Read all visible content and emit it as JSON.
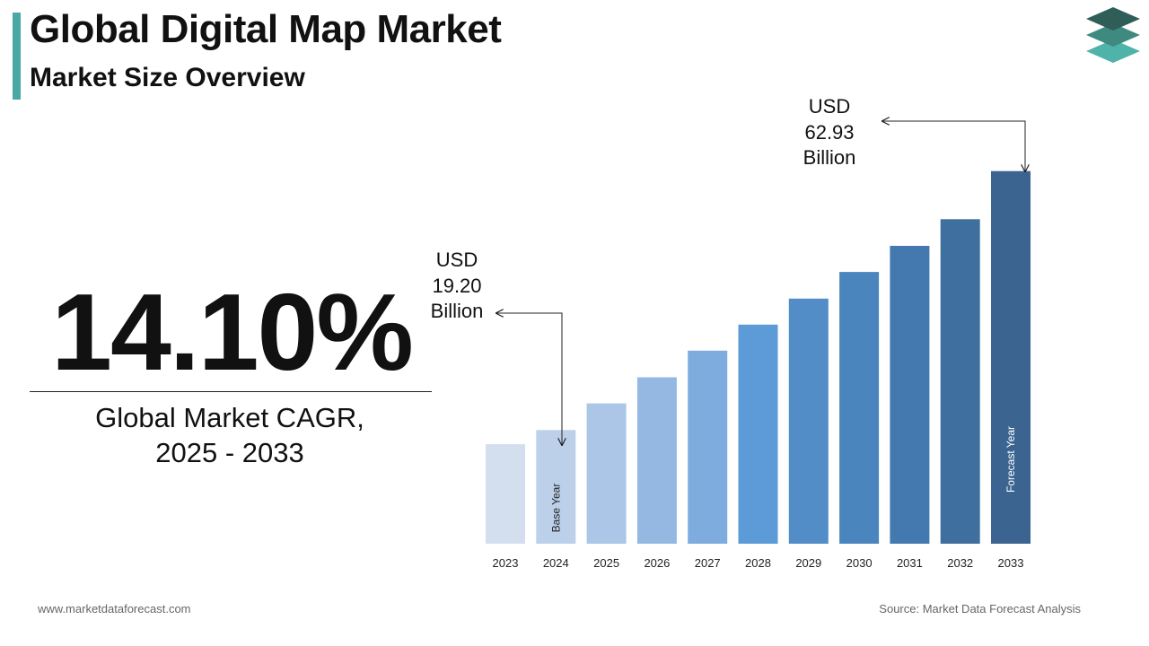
{
  "header": {
    "title": "Global Digital Map Market",
    "subtitle": "Market Size Overview"
  },
  "logo": {
    "icon": "stacked-layers-logo-icon",
    "colors": [
      "#2f5d57",
      "#3f8a80",
      "#4fb3aa"
    ]
  },
  "cagr": {
    "value": "14.10%",
    "label_line1": "Global Market CAGR,",
    "label_line2": "2025 - 2033"
  },
  "annotations": {
    "start": {
      "line1": "USD",
      "line2": "19.20",
      "line3": "Billion"
    },
    "end": {
      "line1": "USD",
      "line2": "62.93",
      "line3": "Billion"
    }
  },
  "chart_data": {
    "type": "bar",
    "categories": [
      "2023",
      "2024",
      "2025",
      "2026",
      "2027",
      "2028",
      "2029",
      "2030",
      "2031",
      "2032",
      "2033"
    ],
    "values": [
      16.8,
      19.2,
      23.7,
      28.1,
      32.6,
      37.0,
      41.4,
      45.9,
      50.3,
      54.8,
      62.93
    ],
    "bar_labels": {
      "2024": "Base Year",
      "2033": "Forecast Year"
    },
    "bar_colors": [
      "#d3deee",
      "#bdd0ea",
      "#abc6e6",
      "#94b8e2",
      "#7eacde",
      "#5d9bd8",
      "#528dc8",
      "#4b85bd",
      "#4479af",
      "#3f6f9f",
      "#3b6590"
    ],
    "ylim": [
      0,
      70
    ]
  },
  "footer": {
    "left": "www.marketdataforecast.com",
    "right": "Source: Market Data Forecast Analysis"
  }
}
